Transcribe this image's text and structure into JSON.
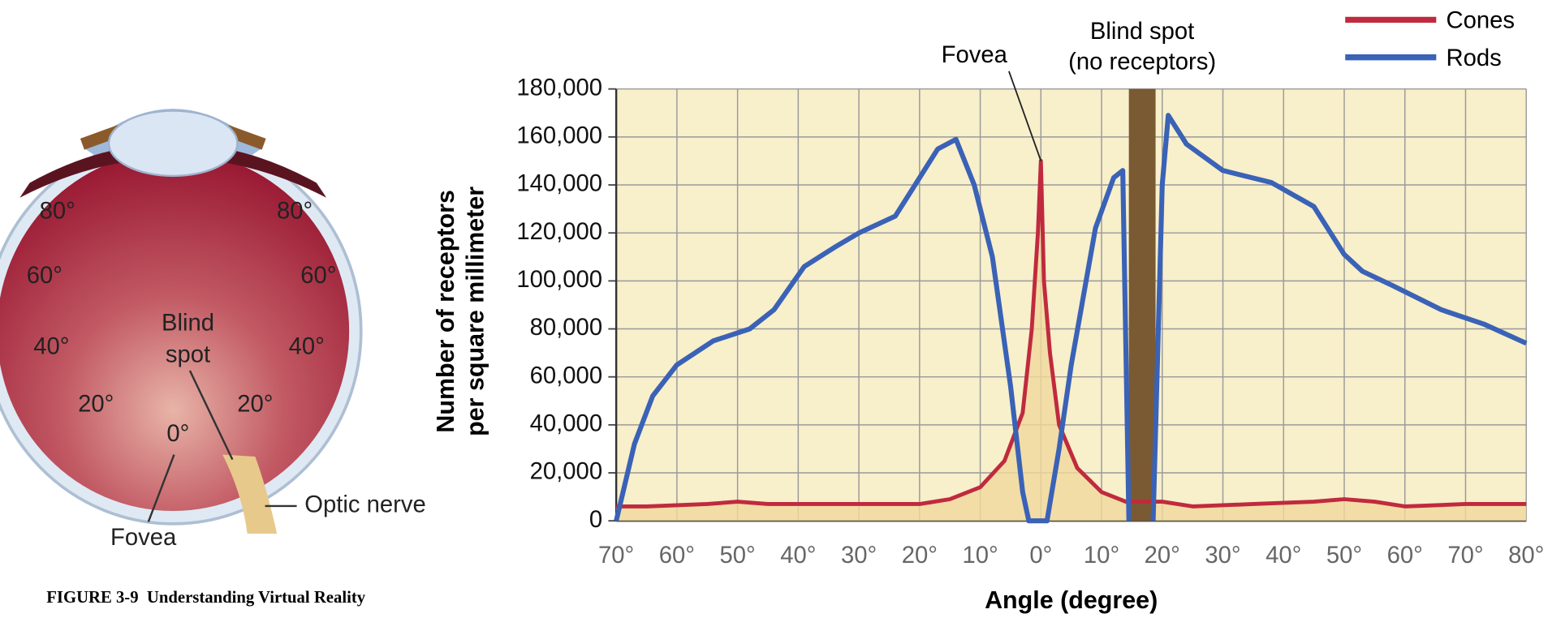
{
  "caption": "FIGURE 3-9  Understanding Virtual Reality",
  "eye_diagram": {
    "angle_labels": [
      "80°",
      "80°",
      "60°",
      "60°",
      "40°",
      "40°",
      "20°",
      "20°",
      "0°"
    ],
    "blind_spot_label": [
      "Blind",
      "spot"
    ],
    "fovea_label": "Fovea",
    "optic_nerve_label": "Optic nerve"
  },
  "chart_data": {
    "type": "line",
    "x_label": "Angle (degree)",
    "y_label": [
      "Number of receptors",
      "per square millimeter"
    ],
    "xlim": [
      -70,
      80
    ],
    "ylim": [
      0,
      180000
    ],
    "xticks": [
      {
        "value": -70,
        "label": "70°"
      },
      {
        "value": -60,
        "label": "60°"
      },
      {
        "value": -50,
        "label": "50°"
      },
      {
        "value": -40,
        "label": "40°"
      },
      {
        "value": -30,
        "label": "30°"
      },
      {
        "value": -20,
        "label": "20°"
      },
      {
        "value": -10,
        "label": "10°"
      },
      {
        "value": 0,
        "label": "0°"
      },
      {
        "value": 10,
        "label": "10°"
      },
      {
        "value": 20,
        "label": "20°"
      },
      {
        "value": 30,
        "label": "30°"
      },
      {
        "value": 40,
        "label": "40°"
      },
      {
        "value": 50,
        "label": "50°"
      },
      {
        "value": 60,
        "label": "60°"
      },
      {
        "value": 70,
        "label": "70°"
      },
      {
        "value": 80,
        "label": "80°"
      }
    ],
    "yticks": [
      0,
      {
        "value": 20000,
        "label": "20,000"
      },
      {
        "value": 40000,
        "label": "40,000"
      },
      {
        "value": 60000,
        "label": "60,000"
      },
      {
        "value": 80000,
        "label": "80,000"
      },
      {
        "value": 100000,
        "label": "100,000"
      },
      {
        "value": 120000,
        "label": "120,000"
      },
      {
        "value": 140000,
        "label": "140,000"
      },
      {
        "value": 160000,
        "label": "160,000"
      },
      {
        "value": 180000,
        "label": "180,000"
      }
    ],
    "grid": true,
    "legend": "upper right",
    "series": [
      {
        "name": "Cones",
        "color": "#c02a3e",
        "fill": "#f0d89c",
        "x": [
          -70,
          -65,
          -55,
          -50,
          -45,
          -35,
          -25,
          -20,
          -15,
          -10,
          -6,
          -3,
          -1.5,
          -0.5,
          0,
          0.5,
          1.5,
          3,
          6,
          10,
          14,
          20,
          25,
          35,
          45,
          50,
          55,
          60,
          70,
          80
        ],
        "values": [
          6000,
          6000,
          7000,
          8000,
          7000,
          7000,
          7000,
          7000,
          9000,
          14000,
          25000,
          45000,
          80000,
          120000,
          150000,
          100000,
          70000,
          40000,
          22000,
          12000,
          8000,
          8000,
          6000,
          7000,
          8000,
          9000,
          8000,
          6000,
          7000,
          7000
        ]
      },
      {
        "name": "Rods",
        "color": "#3a62b6",
        "x": [
          -70,
          -67,
          -64,
          -60,
          -54,
          -48,
          -44,
          -39,
          -34,
          -30,
          -24,
          -20,
          -17,
          -14,
          -11,
          -8,
          -5,
          -3,
          -2,
          1,
          3,
          5,
          9,
          12,
          13.5,
          14.5,
          16,
          18.5,
          20,
          21,
          24,
          30,
          38,
          45,
          50,
          53,
          58,
          66,
          73,
          80
        ],
        "values": [
          0,
          32000,
          52000,
          65000,
          75000,
          80000,
          88000,
          106000,
          114000,
          120000,
          127000,
          143000,
          155000,
          159000,
          140000,
          110000,
          56000,
          12000,
          0,
          0,
          30000,
          65000,
          122000,
          143000,
          146000,
          0,
          null,
          0,
          140000,
          169000,
          157000,
          146000,
          141000,
          131000,
          111000,
          104000,
          98000,
          88000,
          82000,
          74000
        ]
      }
    ],
    "blind_spot": {
      "label": [
        "Blind spot",
        "(no receptors)"
      ],
      "x": [
        14.5,
        18.9
      ],
      "color": "#7a5a32"
    },
    "fovea": {
      "label": "Fovea",
      "x": 0,
      "y": 150000
    }
  }
}
